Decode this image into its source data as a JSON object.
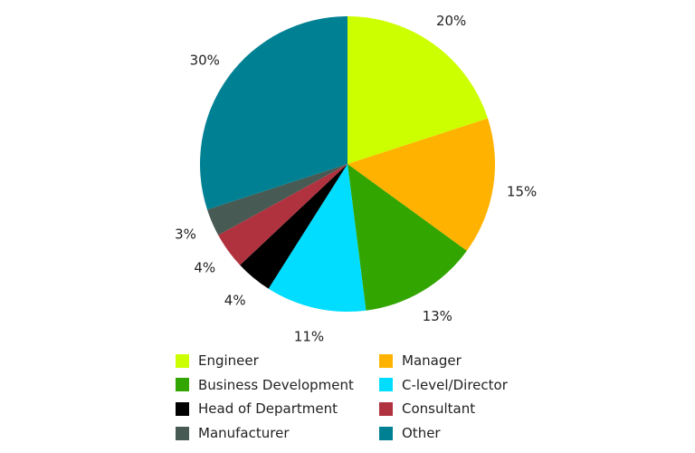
{
  "chart_data": {
    "type": "pie",
    "title": "",
    "start": "top",
    "direction": "clockwise",
    "legend_position": "bottom",
    "slices": [
      {
        "label": "Engineer",
        "value": 20,
        "display": "20%",
        "color": "#ccff00"
      },
      {
        "label": "Manager",
        "value": 15,
        "display": "15%",
        "color": "#ffb300"
      },
      {
        "label": "Business Development",
        "value": 13,
        "display": "13%",
        "color": "#33a500"
      },
      {
        "label": "C-level/Director",
        "value": 11,
        "display": "11%",
        "color": "#00ddff"
      },
      {
        "label": "Head of Department",
        "value": 4,
        "display": "4%",
        "color": "#000000"
      },
      {
        "label": "Consultant",
        "value": 4,
        "display": "4%",
        "color": "#b0323f"
      },
      {
        "label": "Manufacturer",
        "value": 3,
        "display": "3%",
        "color": "#475a53"
      },
      {
        "label": "Other",
        "value": 30,
        "display": "30%",
        "color": "#008193"
      }
    ]
  }
}
